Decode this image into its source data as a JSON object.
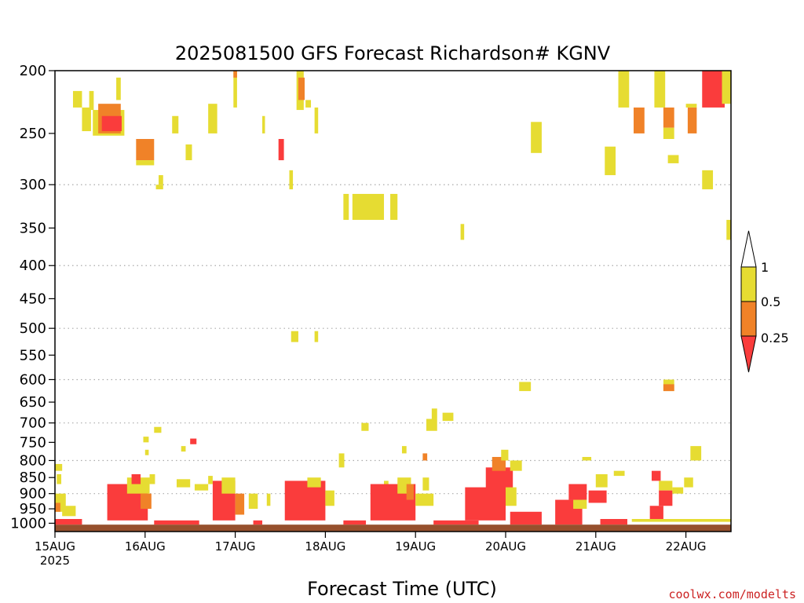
{
  "chart_data": {
    "type": "heatmap",
    "title": "2025081500 GFS Forecast Richardson# KGNV",
    "xlabel": "Forecast Time (UTC)",
    "ylabel": "",
    "credit": "coolwx.com/modelts",
    "x_ticks": [
      {
        "day": 0,
        "label": "15AUG",
        "sub": "2025"
      },
      {
        "day": 1,
        "label": "16AUG",
        "sub": ""
      },
      {
        "day": 2,
        "label": "17AUG",
        "sub": ""
      },
      {
        "day": 3,
        "label": "18AUG",
        "sub": ""
      },
      {
        "day": 4,
        "label": "19AUG",
        "sub": ""
      },
      {
        "day": 5,
        "label": "20AUG",
        "sub": ""
      },
      {
        "day": 6,
        "label": "21AUG",
        "sub": ""
      },
      {
        "day": 7,
        "label": "22AUG",
        "sub": ""
      }
    ],
    "xlim_days": [
      0,
      7.5
    ],
    "y_axis": {
      "scale": "log-pressure",
      "inverted": true,
      "ylim": [
        1030,
        200
      ],
      "ticks": [
        200,
        250,
        300,
        350,
        400,
        450,
        500,
        550,
        600,
        650,
        700,
        750,
        800,
        850,
        900,
        950,
        1000
      ],
      "grid_at": [
        300,
        400,
        500,
        600,
        700,
        800,
        900
      ]
    },
    "legend": {
      "placement": "right",
      "labels": [
        "1",
        "0.5",
        "0.25"
      ],
      "bins": [
        {
          "range": "> 1",
          "color": "#ffffff"
        },
        {
          "range": "0.5 - 1",
          "color": "#e6dc32"
        },
        {
          "range": "0.25 - 0.5",
          "color": "#f08228"
        },
        {
          "range": "< 0.25",
          "color": "#fa3c3c"
        }
      ]
    },
    "colors": {
      "yellow": "#e6dc32",
      "orange": "#f08228",
      "red": "#fa3c3c",
      "ground": "#96502d"
    },
    "cells": [
      {
        "t": 0.0,
        "w": 0.08,
        "p1": 810,
        "p2": 830,
        "c": "y"
      },
      {
        "t": 0.02,
        "w": 0.05,
        "p1": 840,
        "p2": 870,
        "c": "y"
      },
      {
        "t": 0.0,
        "w": 0.12,
        "p1": 900,
        "p2": 960,
        "c": "y"
      },
      {
        "t": 0.08,
        "w": 0.15,
        "p1": 940,
        "p2": 975,
        "c": "y"
      },
      {
        "t": 0.0,
        "w": 0.06,
        "p1": 930,
        "p2": 960,
        "c": "o"
      },
      {
        "t": 0.0,
        "w": 0.3,
        "p1": 985,
        "p2": 1005,
        "c": "r"
      },
      {
        "t": 0.2,
        "w": 0.1,
        "p1": 215,
        "p2": 228,
        "c": "y"
      },
      {
        "t": 0.3,
        "w": 0.1,
        "p1": 228,
        "p2": 248,
        "c": "y"
      },
      {
        "t": 0.38,
        "w": 0.05,
        "p1": 215,
        "p2": 230,
        "c": "y"
      },
      {
        "t": 0.42,
        "w": 0.35,
        "p1": 230,
        "p2": 252,
        "c": "y"
      },
      {
        "t": 0.48,
        "w": 0.25,
        "p1": 225,
        "p2": 250,
        "c": "o"
      },
      {
        "t": 0.52,
        "w": 0.22,
        "p1": 235,
        "p2": 248,
        "c": "r"
      },
      {
        "t": 0.68,
        "w": 0.05,
        "p1": 205,
        "p2": 222,
        "c": "y"
      },
      {
        "t": 0.58,
        "w": 0.45,
        "p1": 870,
        "p2": 990,
        "c": "r"
      },
      {
        "t": 0.8,
        "w": 0.25,
        "p1": 850,
        "p2": 900,
        "c": "y"
      },
      {
        "t": 0.85,
        "w": 0.1,
        "p1": 840,
        "p2": 870,
        "c": "r"
      },
      {
        "t": 0.95,
        "w": 0.12,
        "p1": 900,
        "p2": 950,
        "c": "o"
      },
      {
        "t": 1.05,
        "w": 0.06,
        "p1": 840,
        "p2": 870,
        "c": "y"
      },
      {
        "t": 0.9,
        "w": 0.2,
        "p1": 255,
        "p2": 275,
        "c": "o"
      },
      {
        "t": 0.9,
        "w": 0.2,
        "p1": 275,
        "p2": 280,
        "c": "y"
      },
      {
        "t": 1.15,
        "w": 0.05,
        "p1": 290,
        "p2": 300,
        "c": "y"
      },
      {
        "t": 1.12,
        "w": 0.08,
        "p1": 300,
        "p2": 305,
        "c": "y"
      },
      {
        "t": 1.3,
        "w": 0.07,
        "p1": 235,
        "p2": 250,
        "c": "y"
      },
      {
        "t": 1.45,
        "w": 0.07,
        "p1": 260,
        "p2": 275,
        "c": "y"
      },
      {
        "t": 0.98,
        "w": 0.06,
        "p1": 735,
        "p2": 750,
        "c": "y"
      },
      {
        "t": 1.1,
        "w": 0.08,
        "p1": 710,
        "p2": 725,
        "c": "y"
      },
      {
        "t": 1.0,
        "w": 0.04,
        "p1": 770,
        "p2": 785,
        "c": "y"
      },
      {
        "t": 1.5,
        "w": 0.07,
        "p1": 740,
        "p2": 755,
        "c": "r"
      },
      {
        "t": 1.4,
        "w": 0.05,
        "p1": 760,
        "p2": 775,
        "c": "y"
      },
      {
        "t": 1.35,
        "w": 0.15,
        "p1": 855,
        "p2": 880,
        "c": "y"
      },
      {
        "t": 1.55,
        "w": 0.15,
        "p1": 870,
        "p2": 890,
        "c": "y"
      },
      {
        "t": 1.7,
        "w": 0.05,
        "p1": 845,
        "p2": 870,
        "c": "y"
      },
      {
        "t": 1.1,
        "w": 0.5,
        "p1": 990,
        "p2": 1005,
        "c": "r"
      },
      {
        "t": 1.7,
        "w": 0.1,
        "p1": 225,
        "p2": 250,
        "c": "y"
      },
      {
        "t": 1.98,
        "w": 0.04,
        "p1": 200,
        "p2": 228,
        "c": "y"
      },
      {
        "t": 1.98,
        "w": 0.04,
        "p1": 200,
        "p2": 205,
        "c": "o"
      },
      {
        "t": 1.75,
        "w": 0.25,
        "p1": 860,
        "p2": 990,
        "c": "r"
      },
      {
        "t": 1.85,
        "w": 0.15,
        "p1": 850,
        "p2": 900,
        "c": "y"
      },
      {
        "t": 2.0,
        "w": 0.1,
        "p1": 900,
        "p2": 970,
        "c": "o"
      },
      {
        "t": 2.15,
        "w": 0.1,
        "p1": 900,
        "p2": 950,
        "c": "y"
      },
      {
        "t": 2.35,
        "w": 0.04,
        "p1": 900,
        "p2": 940,
        "c": "y"
      },
      {
        "t": 2.2,
        "w": 0.1,
        "p1": 990,
        "p2": 1005,
        "c": "r"
      },
      {
        "t": 2.3,
        "w": 0.03,
        "p1": 235,
        "p2": 250,
        "c": "y"
      },
      {
        "t": 2.48,
        "w": 0.06,
        "p1": 255,
        "p2": 275,
        "c": "r"
      },
      {
        "t": 2.6,
        "w": 0.04,
        "p1": 285,
        "p2": 305,
        "c": "y"
      },
      {
        "t": 2.68,
        "w": 0.08,
        "p1": 200,
        "p2": 230,
        "c": "y"
      },
      {
        "t": 2.7,
        "w": 0.07,
        "p1": 205,
        "p2": 222,
        "c": "o"
      },
      {
        "t": 2.78,
        "w": 0.06,
        "p1": 222,
        "p2": 228,
        "c": "y"
      },
      {
        "t": 2.88,
        "w": 0.04,
        "p1": 228,
        "p2": 250,
        "c": "y"
      },
      {
        "t": 2.62,
        "w": 0.08,
        "p1": 505,
        "p2": 525,
        "c": "y"
      },
      {
        "t": 2.88,
        "w": 0.04,
        "p1": 505,
        "p2": 525,
        "c": "y"
      },
      {
        "t": 2.55,
        "w": 0.45,
        "p1": 860,
        "p2": 990,
        "c": "r"
      },
      {
        "t": 2.8,
        "w": 0.15,
        "p1": 850,
        "p2": 880,
        "c": "y"
      },
      {
        "t": 3.0,
        "w": 0.1,
        "p1": 890,
        "p2": 940,
        "c": "y"
      },
      {
        "t": 3.2,
        "w": 0.25,
        "p1": 990,
        "p2": 1005,
        "c": "r"
      },
      {
        "t": 3.2,
        "w": 0.06,
        "p1": 310,
        "p2": 340,
        "c": "y"
      },
      {
        "t": 3.3,
        "w": 0.35,
        "p1": 310,
        "p2": 340,
        "c": "y"
      },
      {
        "t": 3.72,
        "w": 0.08,
        "p1": 310,
        "p2": 340,
        "c": "y"
      },
      {
        "t": 3.15,
        "w": 0.06,
        "p1": 780,
        "p2": 820,
        "c": "y"
      },
      {
        "t": 3.4,
        "w": 0.08,
        "p1": 700,
        "p2": 720,
        "c": "y"
      },
      {
        "t": 3.65,
        "w": 0.05,
        "p1": 860,
        "p2": 880,
        "c": "y"
      },
      {
        "t": 3.5,
        "w": 0.5,
        "p1": 870,
        "p2": 990,
        "c": "r"
      },
      {
        "t": 3.8,
        "w": 0.15,
        "p1": 850,
        "p2": 900,
        "c": "y"
      },
      {
        "t": 3.9,
        "w": 0.08,
        "p1": 870,
        "p2": 920,
        "c": "o"
      },
      {
        "t": 4.0,
        "w": 0.2,
        "p1": 900,
        "p2": 940,
        "c": "y"
      },
      {
        "t": 4.08,
        "w": 0.07,
        "p1": 850,
        "p2": 890,
        "c": "y"
      },
      {
        "t": 3.85,
        "w": 0.05,
        "p1": 760,
        "p2": 780,
        "c": "y"
      },
      {
        "t": 4.08,
        "w": 0.05,
        "p1": 780,
        "p2": 800,
        "c": "o"
      },
      {
        "t": 4.12,
        "w": 0.12,
        "p1": 690,
        "p2": 720,
        "c": "y"
      },
      {
        "t": 4.18,
        "w": 0.06,
        "p1": 665,
        "p2": 690,
        "c": "y"
      },
      {
        "t": 4.3,
        "w": 0.12,
        "p1": 675,
        "p2": 695,
        "c": "y"
      },
      {
        "t": 4.2,
        "w": 0.5,
        "p1": 990,
        "p2": 1005,
        "c": "r"
      },
      {
        "t": 4.5,
        "w": 0.04,
        "p1": 345,
        "p2": 365,
        "c": "y"
      },
      {
        "t": 4.55,
        "w": 0.45,
        "p1": 880,
        "p2": 990,
        "c": "r"
      },
      {
        "t": 4.78,
        "w": 0.3,
        "p1": 820,
        "p2": 900,
        "c": "r"
      },
      {
        "t": 4.85,
        "w": 0.15,
        "p1": 790,
        "p2": 830,
        "c": "o"
      },
      {
        "t": 4.95,
        "w": 0.08,
        "p1": 770,
        "p2": 800,
        "c": "y"
      },
      {
        "t": 5.05,
        "w": 0.13,
        "p1": 800,
        "p2": 830,
        "c": "y"
      },
      {
        "t": 5.0,
        "w": 0.12,
        "p1": 880,
        "p2": 940,
        "c": "y"
      },
      {
        "t": 5.05,
        "w": 0.35,
        "p1": 960,
        "p2": 1005,
        "c": "r"
      },
      {
        "t": 5.15,
        "w": 0.13,
        "p1": 605,
        "p2": 625,
        "c": "y"
      },
      {
        "t": 5.28,
        "w": 0.12,
        "p1": 240,
        "p2": 268,
        "c": "y"
      },
      {
        "t": 5.55,
        "w": 0.3,
        "p1": 920,
        "p2": 1005,
        "c": "r"
      },
      {
        "t": 5.7,
        "w": 0.2,
        "p1": 870,
        "p2": 920,
        "c": "r"
      },
      {
        "t": 5.75,
        "w": 0.15,
        "p1": 920,
        "p2": 950,
        "c": "y"
      },
      {
        "t": 5.85,
        "w": 0.1,
        "p1": 790,
        "p2": 800,
        "c": "y"
      },
      {
        "t": 5.92,
        "w": 0.2,
        "p1": 890,
        "p2": 930,
        "c": "r"
      },
      {
        "t": 6.0,
        "w": 0.13,
        "p1": 840,
        "p2": 880,
        "c": "y"
      },
      {
        "t": 6.2,
        "w": 0.12,
        "p1": 830,
        "p2": 845,
        "c": "y"
      },
      {
        "t": 6.05,
        "w": 0.3,
        "p1": 985,
        "p2": 1005,
        "c": "r"
      },
      {
        "t": 6.1,
        "w": 0.12,
        "p1": 262,
        "p2": 290,
        "c": "y"
      },
      {
        "t": 6.25,
        "w": 0.12,
        "p1": 200,
        "p2": 228,
        "c": "y"
      },
      {
        "t": 6.42,
        "w": 0.12,
        "p1": 228,
        "p2": 250,
        "c": "o"
      },
      {
        "t": 6.65,
        "w": 0.12,
        "p1": 200,
        "p2": 228,
        "c": "y"
      },
      {
        "t": 6.75,
        "w": 0.12,
        "p1": 228,
        "p2": 245,
        "c": "o"
      },
      {
        "t": 6.75,
        "w": 0.12,
        "p1": 245,
        "p2": 255,
        "c": "y"
      },
      {
        "t": 6.8,
        "w": 0.12,
        "p1": 270,
        "p2": 278,
        "c": "y"
      },
      {
        "t": 7.02,
        "w": 0.1,
        "p1": 228,
        "p2": 250,
        "c": "o"
      },
      {
        "t": 7.0,
        "w": 0.12,
        "p1": 225,
        "p2": 228,
        "c": "y"
      },
      {
        "t": 7.18,
        "w": 0.25,
        "p1": 200,
        "p2": 228,
        "c": "r"
      },
      {
        "t": 7.4,
        "w": 0.1,
        "p1": 200,
        "p2": 225,
        "c": "y"
      },
      {
        "t": 7.18,
        "w": 0.12,
        "p1": 285,
        "p2": 305,
        "c": "y"
      },
      {
        "t": 7.45,
        "w": 0.05,
        "p1": 340,
        "p2": 365,
        "c": "y"
      },
      {
        "t": 6.62,
        "w": 0.1,
        "p1": 830,
        "p2": 860,
        "c": "r"
      },
      {
        "t": 6.7,
        "w": 0.15,
        "p1": 860,
        "p2": 890,
        "c": "y"
      },
      {
        "t": 6.7,
        "w": 0.15,
        "p1": 890,
        "p2": 940,
        "c": "r"
      },
      {
        "t": 6.85,
        "w": 0.12,
        "p1": 880,
        "p2": 900,
        "c": "y"
      },
      {
        "t": 6.6,
        "w": 0.15,
        "p1": 940,
        "p2": 990,
        "c": "r"
      },
      {
        "t": 6.75,
        "w": 0.12,
        "p1": 600,
        "p2": 625,
        "c": "y"
      },
      {
        "t": 6.75,
        "w": 0.12,
        "p1": 610,
        "p2": 625,
        "c": "o"
      },
      {
        "t": 7.05,
        "w": 0.12,
        "p1": 760,
        "p2": 800,
        "c": "y"
      },
      {
        "t": 6.98,
        "w": 0.1,
        "p1": 850,
        "p2": 880,
        "c": "y"
      },
      {
        "t": 6.4,
        "w": 1.1,
        "p1": 985,
        "p2": 995,
        "c": "y"
      }
    ]
  }
}
